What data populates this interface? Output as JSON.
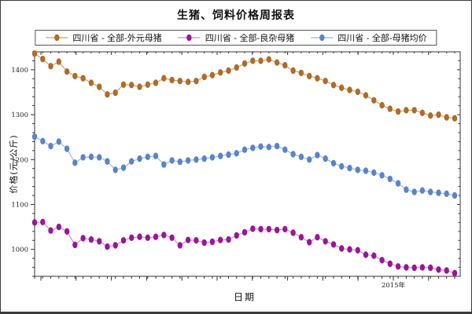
{
  "window": {
    "background": "#ffffff",
    "frame_color": "#3c3c3c",
    "axis_color": "#333333"
  },
  "chart_data": {
    "type": "line",
    "title": "生猪、饲料价格周报表",
    "xlabel": "日期",
    "ylabel": "价格(元/公斤)",
    "ylim": [
      940,
      1440
    ],
    "ytick_major": [
      1000,
      1100,
      1200,
      1300,
      1400
    ],
    "ytick_minor_step": 20,
    "xtick_major_count": 12,
    "xtick_year_label": "2015年",
    "xtick_year_index": 10,
    "grid": false,
    "legend_position": "top-center",
    "marker": "ellipse",
    "series": [
      {
        "name": "四川省 - 全部-外元母猪",
        "dot_color": "#ad6c29",
        "line_color": "#d09a64",
        "values": [
          1436,
          1424,
          1408,
          1418,
          1396,
          1386,
          1381,
          1371,
          1362,
          1345,
          1349,
          1367,
          1366,
          1362,
          1367,
          1371,
          1381,
          1377,
          1375,
          1373,
          1375,
          1384,
          1388,
          1394,
          1398,
          1405,
          1414,
          1420,
          1420,
          1423,
          1416,
          1410,
          1398,
          1393,
          1386,
          1381,
          1375,
          1366,
          1360,
          1355,
          1351,
          1343,
          1332,
          1321,
          1313,
          1307,
          1310,
          1310,
          1304,
          1298,
          1300,
          1294,
          1292
        ]
      },
      {
        "name": "四川省 - 全部-良杂母猪",
        "dot_color": "#9a1698",
        "line_color": "#cd86ca",
        "values": [
          1060,
          1061,
          1042,
          1050,
          1040,
          1010,
          1025,
          1022,
          1018,
          1006,
          1009,
          1020,
          1026,
          1028,
          1026,
          1028,
          1032,
          1026,
          1009,
          1021,
          1020,
          1015,
          1017,
          1021,
          1022,
          1031,
          1038,
          1046,
          1045,
          1045,
          1043,
          1045,
          1037,
          1027,
          1016,
          1027,
          1018,
          1011,
          1002,
          1000,
          998,
          988,
          986,
          976,
          968,
          962,
          960,
          959,
          960,
          959,
          955,
          953,
          947
        ]
      },
      {
        "name": "四川省 - 全部-母猪均价",
        "dot_color": "#5b84c8",
        "line_color": "#94b4e0",
        "values": [
          1251,
          1241,
          1230,
          1240,
          1224,
          1193,
          1205,
          1206,
          1205,
          1196,
          1177,
          1182,
          1196,
          1202,
          1206,
          1208,
          1189,
          1198,
          1195,
          1198,
          1200,
          1202,
          1205,
          1208,
          1211,
          1214,
          1222,
          1226,
          1229,
          1228,
          1230,
          1222,
          1212,
          1206,
          1200,
          1210,
          1202,
          1192,
          1185,
          1181,
          1177,
          1175,
          1171,
          1165,
          1157,
          1147,
          1133,
          1128,
          1131,
          1128,
          1126,
          1124,
          1120
        ]
      }
    ]
  }
}
